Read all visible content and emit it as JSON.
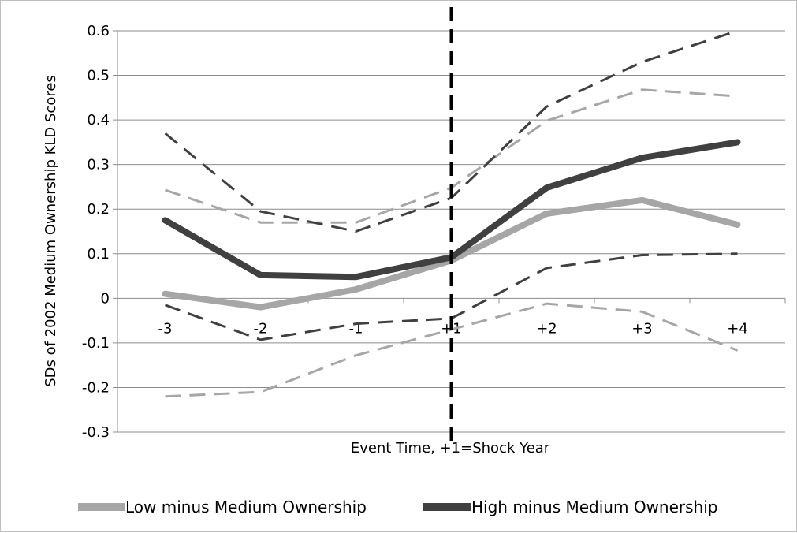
{
  "chart_data": {
    "type": "line",
    "title": "",
    "xlabel": "Event Time, +1=Shock Year",
    "ylabel": "SDs of 2002 Medium Ownership KLD Scores",
    "categories": [
      "-3",
      "-2",
      "-1",
      "+1",
      "+2",
      "+3",
      "+4"
    ],
    "ylim": [
      -0.3,
      0.6
    ],
    "yticks": [
      "0.6",
      "0.5",
      "0.4",
      "0.3",
      "0.2",
      "0.1",
      "0",
      "-0.1",
      "-0.2",
      "-0.3"
    ],
    "grid": true,
    "legend_position": "bottom",
    "shock_marker_category": "+1",
    "series": [
      {
        "name": "Low minus Medium Ownership",
        "color": "#a6a6a6",
        "style": "solid",
        "values": [
          0.01,
          -0.02,
          0.02,
          0.085,
          0.19,
          0.22,
          0.165
        ]
      },
      {
        "name": "High minus Medium Ownership",
        "color": "#404040",
        "style": "solid",
        "values": [
          0.175,
          0.052,
          0.048,
          0.092,
          0.248,
          0.315,
          0.35
        ]
      }
    ],
    "confidence_bands": [
      {
        "for": "Low minus Medium Ownership",
        "color": "#a6a6a6",
        "style": "dashed",
        "upper": [
          0.243,
          0.17,
          0.17,
          0.248,
          0.398,
          0.468,
          0.453
        ],
        "lower": [
          -0.22,
          -0.21,
          -0.128,
          -0.07,
          -0.012,
          -0.03,
          -0.117
        ]
      },
      {
        "for": "High minus Medium Ownership",
        "color": "#404040",
        "style": "dashed",
        "upper": [
          0.37,
          0.195,
          0.15,
          0.225,
          0.43,
          0.53,
          0.6
        ],
        "lower": [
          -0.015,
          -0.093,
          -0.057,
          -0.045,
          0.068,
          0.097,
          0.1
        ]
      }
    ]
  }
}
